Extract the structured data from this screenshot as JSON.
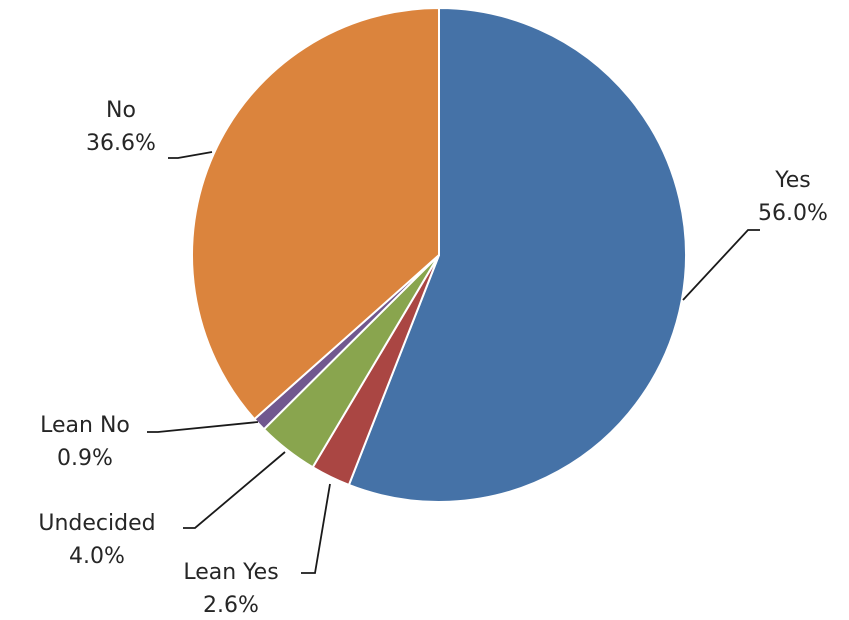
{
  "chart_data": {
    "type": "pie",
    "title": "",
    "slices": [
      {
        "label": "Yes",
        "value": 56.0,
        "value_text": "56.0%",
        "color": "#4572A7"
      },
      {
        "label": "Lean Yes",
        "value": 2.6,
        "value_text": "2.6%",
        "color": "#AA4643"
      },
      {
        "label": "Undecided",
        "value": 4.0,
        "value_text": "4.0%",
        "color": "#89A54E"
      },
      {
        "label": "Lean No",
        "value": 0.9,
        "value_text": "0.9%",
        "color": "#71588F"
      },
      {
        "label": "No",
        "value": 36.6,
        "value_text": "36.6%",
        "color": "#DB843D"
      }
    ],
    "start": "12 o'clock",
    "direction": "clockwise",
    "legend": "none"
  }
}
